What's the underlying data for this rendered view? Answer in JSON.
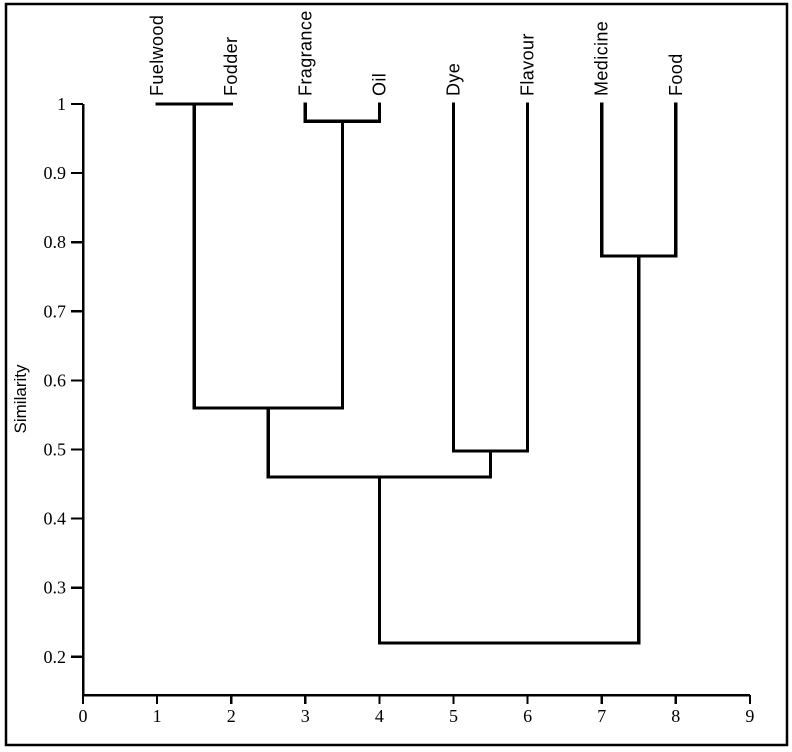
{
  "chart_data": {
    "type": "dendrogram",
    "title": "",
    "xlabel": "",
    "ylabel": "Similarity",
    "x_ticks": [
      0,
      1,
      2,
      3,
      4,
      5,
      6,
      7,
      8,
      9
    ],
    "x_tick_labels": [
      "0",
      "1",
      "2",
      "3",
      "4",
      "5",
      "6",
      "7",
      "8",
      "9"
    ],
    "y_ticks": [
      1.0,
      0.9,
      0.8,
      0.7,
      0.6,
      0.5,
      0.4,
      0.3,
      0.2
    ],
    "y_tick_labels": [
      "1",
      "0.9",
      "0.8",
      "0.7",
      "0.6",
      "0.5",
      "0.4",
      "0.3",
      "0.2"
    ],
    "axis_ranges": {
      "x": [
        0,
        9
      ],
      "y": [
        0.15,
        1.0
      ]
    },
    "grid": false,
    "legend": null,
    "leaves": [
      {
        "label": "Fuelwood",
        "x": 1
      },
      {
        "label": "Fodder",
        "x": 2
      },
      {
        "label": "Fragrance",
        "x": 3
      },
      {
        "label": "Oil",
        "x": 4
      },
      {
        "label": "Dye",
        "x": 5
      },
      {
        "label": "Flavour",
        "x": 6
      },
      {
        "label": "Medicine",
        "x": 7
      },
      {
        "label": "Food",
        "x": 8
      }
    ],
    "merges": [
      {
        "id": "A",
        "children": [
          "Fuelwood",
          "Fodder"
        ],
        "similarity": 1.0
      },
      {
        "id": "B",
        "children": [
          "Fragrance",
          "Oil"
        ],
        "similarity": 0.975
      },
      {
        "id": "C",
        "children": [
          "A",
          "B"
        ],
        "similarity": 0.56
      },
      {
        "id": "D",
        "children": [
          "Dye",
          "Flavour"
        ],
        "similarity": 0.498
      },
      {
        "id": "E",
        "children": [
          "C",
          "D"
        ],
        "similarity": 0.46
      },
      {
        "id": "F",
        "children": [
          "Medicine",
          "Food"
        ],
        "similarity": 0.78
      },
      {
        "id": "G",
        "children": [
          "E",
          "F"
        ],
        "similarity": 0.22
      }
    ],
    "colors": {
      "line": "#000000",
      "background": "#ffffff"
    }
  }
}
